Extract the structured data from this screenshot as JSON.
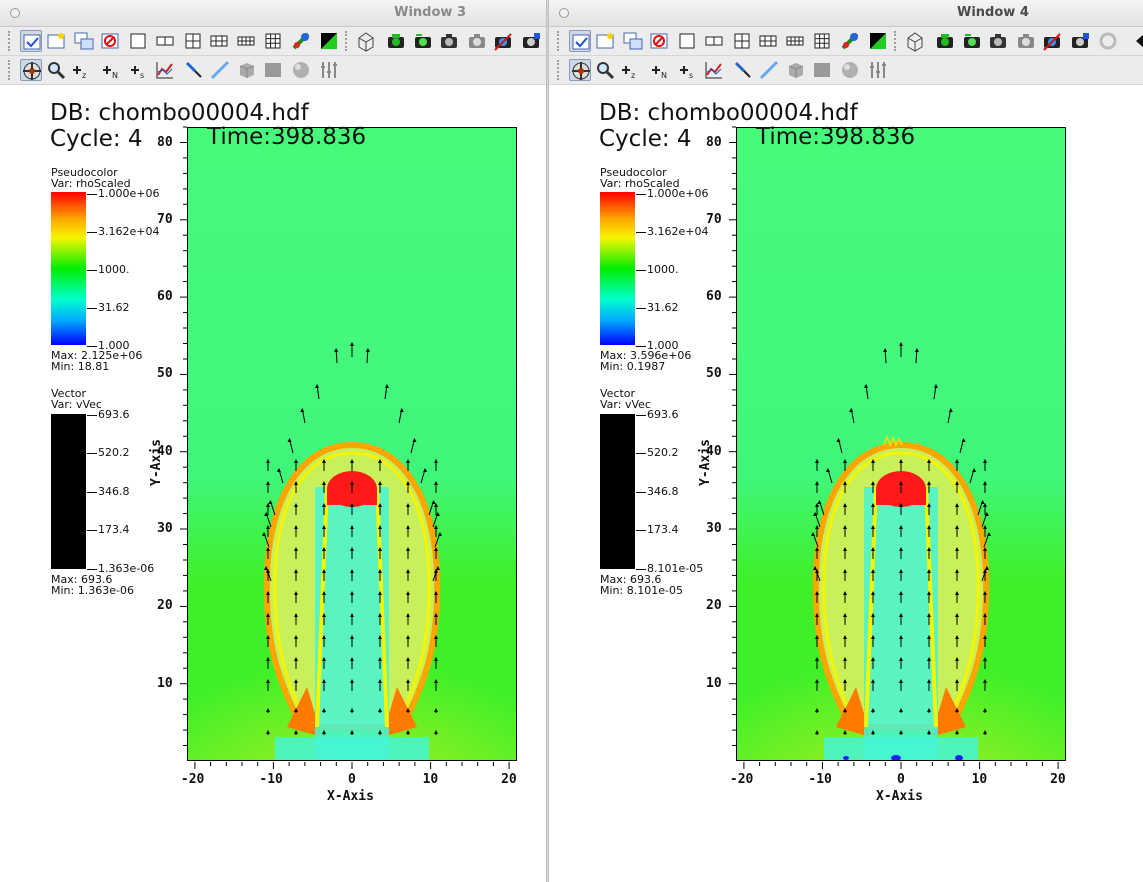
{
  "windows": [
    {
      "title": "Window 3",
      "db": "DB: chombo00004.hdf",
      "cycle": "Cycle: 4",
      "time": "Time:398.836",
      "pseudocolor": {
        "title": "Pseudocolor",
        "var": "Var: rhoScaled",
        "ticks": [
          "1.000e+06",
          "3.162e+04",
          "1000.",
          "31.62",
          "1.000"
        ],
        "max": "Max:  2.125e+06",
        "min": "Min:  18.81"
      },
      "vector": {
        "title": "Vector",
        "var": "Var: vVec",
        "ticks": [
          "693.6",
          "520.2",
          "346.8",
          "173.4",
          "1.363e-06"
        ],
        "max": "Max:  693.6",
        "min": "Min:  1.363e-06"
      },
      "x_axis_title": "X-Axis",
      "y_axis_title": "Y-Axis",
      "x_ticks": [
        "-20",
        "-10",
        "0",
        "10",
        "20"
      ],
      "y_ticks": [
        "80",
        "70",
        "60",
        "50",
        "40",
        "30",
        "20",
        "10"
      ]
    },
    {
      "title": "Window 4",
      "db": "DB: chombo00004.hdf",
      "cycle": "Cycle: 4",
      "time": "Time:398.836",
      "pseudocolor": {
        "title": "Pseudocolor",
        "var": "Var: rhoScaled",
        "ticks": [
          "1.000e+06",
          "3.162e+04",
          "1000.",
          "31.62",
          "1.000"
        ],
        "max": "Max:  3.596e+06",
        "min": "Min:  0.1987"
      },
      "vector": {
        "title": "Vector",
        "var": "Var: vVec",
        "ticks": [
          "693.6",
          "520.2",
          "346.8",
          "173.4",
          "8.101e-05"
        ],
        "max": "Max:  693.6",
        "min": "Min:  8.101e-05"
      },
      "x_axis_title": "X-Axis",
      "y_axis_title": "Y-Axis",
      "x_ticks": [
        "-20",
        "-10",
        "0",
        "10",
        "20"
      ],
      "y_ticks": [
        "80",
        "70",
        "60",
        "50",
        "40",
        "30",
        "20",
        "10"
      ]
    }
  ],
  "toolbar_row1_icons": [
    "active-window-icon",
    "new-window-icon",
    "clone-window-icon",
    "delete-window-icon",
    "layout-1x1-icon",
    "layout-1x2-icon",
    "layout-2x2-icon",
    "layout-2x3-icon",
    "layout-2x4-icon",
    "layout-3x3-icon",
    "lock-view-icon",
    "invert-colors-icon",
    "reset-view-icon",
    "camera-green-icon",
    "camera-flip-icon",
    "camera-save-icon",
    "camera-grey-icon",
    "camera-cross-icon",
    "camera-blue-icon",
    "spin-icon",
    "expand-arrow-icon"
  ],
  "toolbar_row2_icons": [
    "navigate-icon",
    "zoom-icon",
    "pick-zone-icon",
    "pick-node-icon",
    "pick-surface-icon",
    "lineout-icon",
    "pick-point-icon",
    "line-tool-icon",
    "box-tool-icon",
    "plane-tool-icon",
    "sphere-tool-icon",
    "axis-tool-icon"
  ],
  "colors": {
    "background_field": "#48fa7c",
    "bubble_red": "#ff1a1a",
    "shell_orange": "#ffa500",
    "shell_yellow": "#f5f500",
    "jet_cyan": "#45f5d5",
    "lower_green": "#3ff028"
  }
}
